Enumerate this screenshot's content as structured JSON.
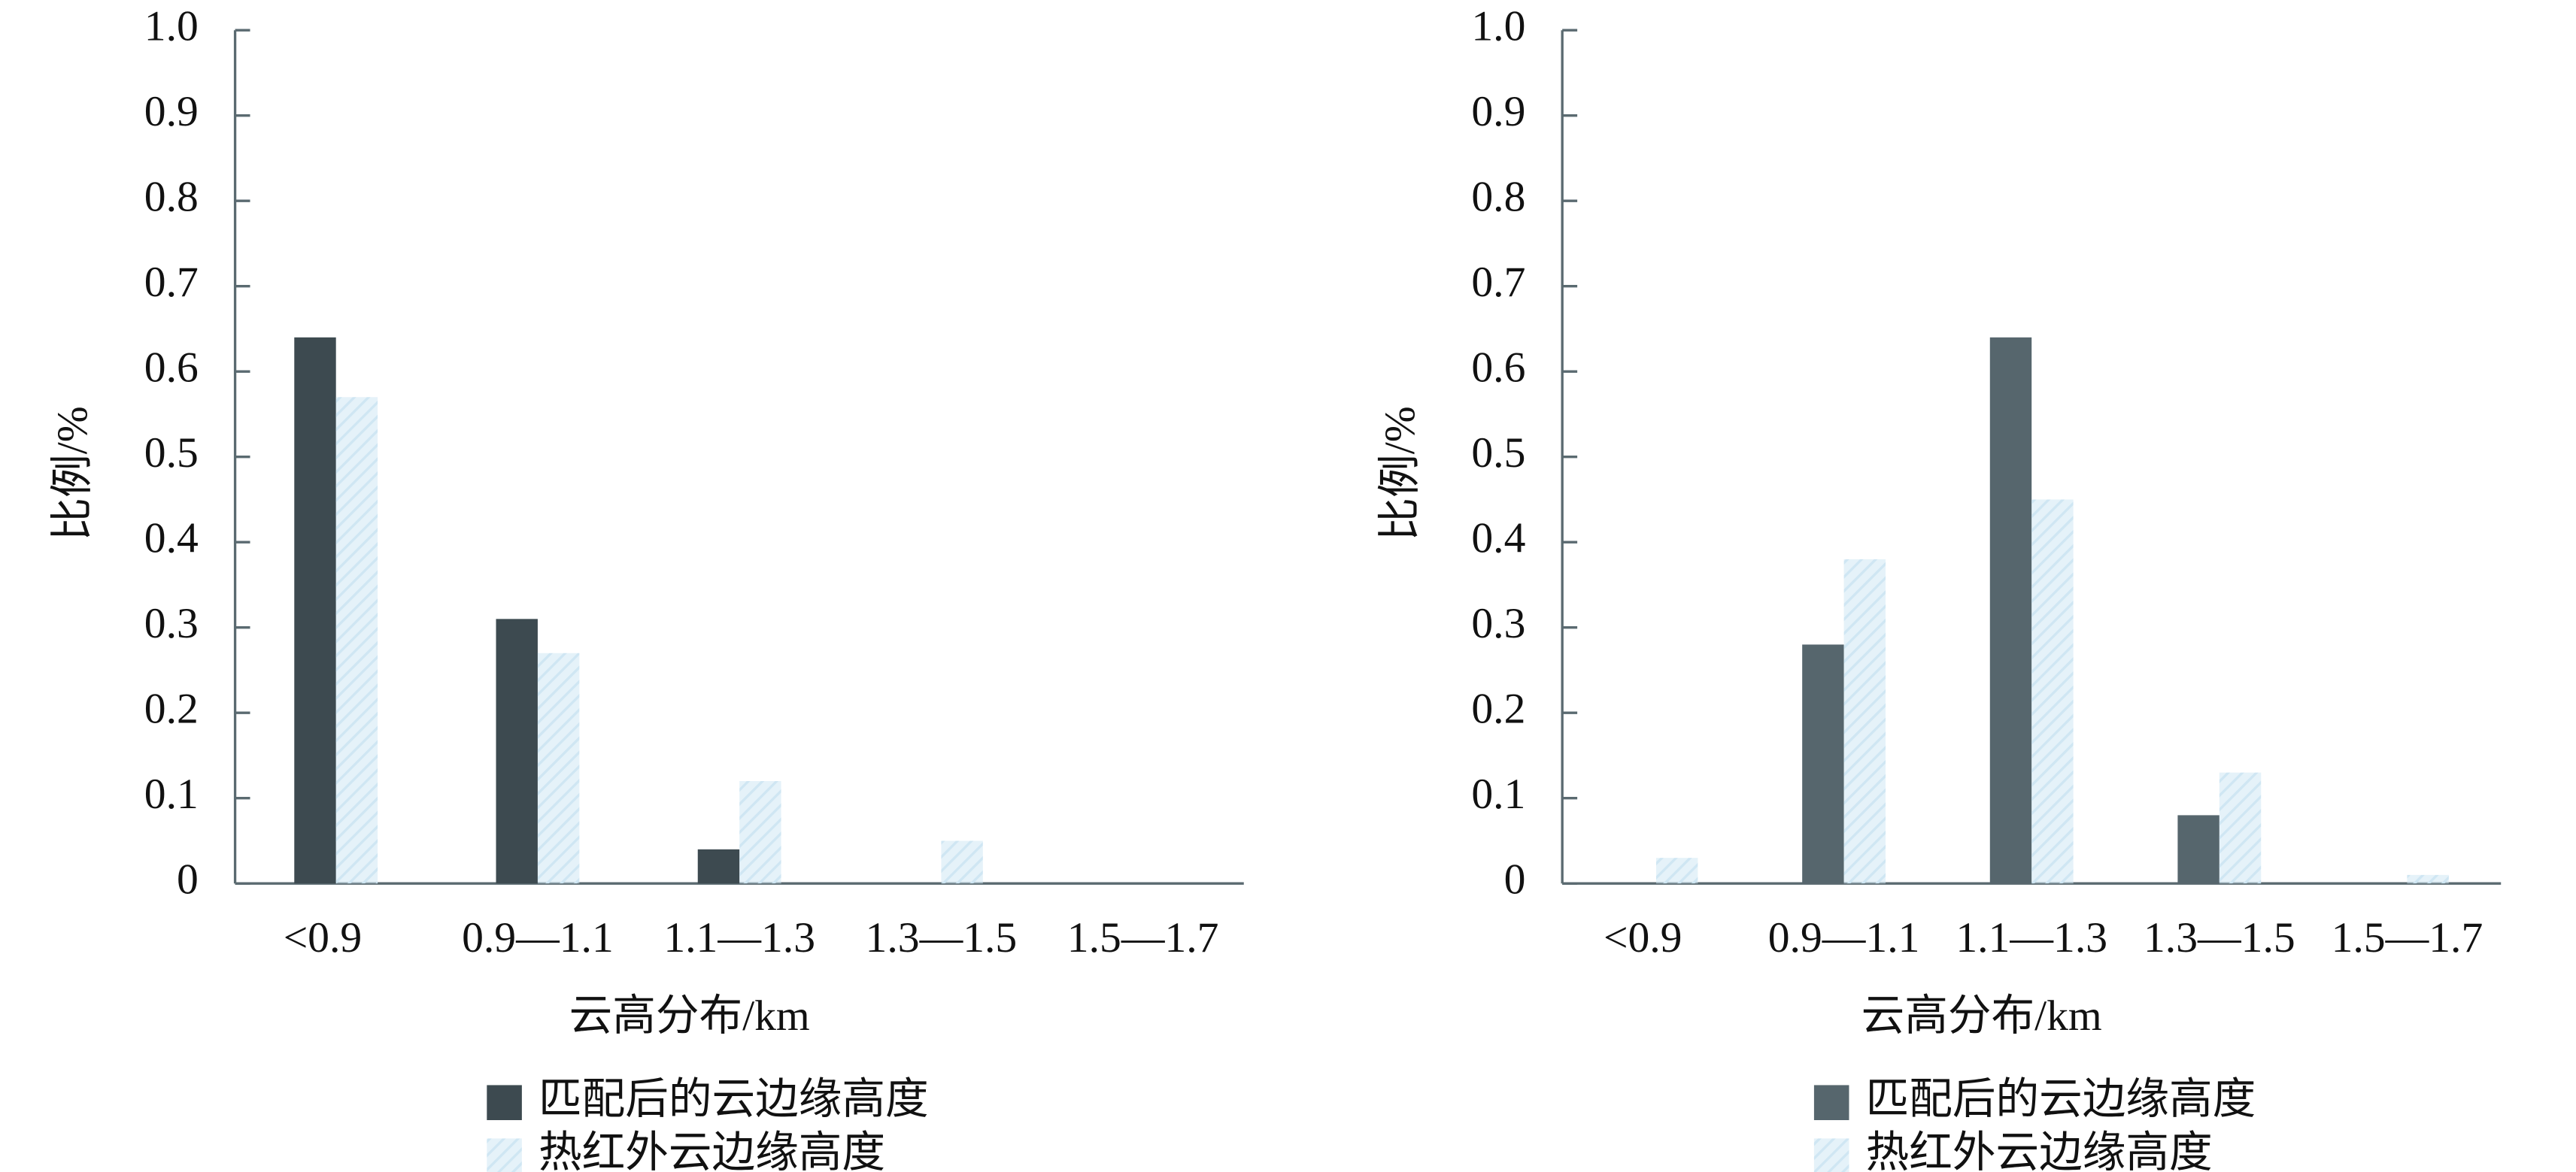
{
  "chart_data": [
    {
      "type": "bar",
      "x_label": "云高分布/km",
      "y_label": "比例/%",
      "categories": [
        "<0.9",
        "0.9—1.1",
        "1.1—1.3",
        "1.3—1.5",
        "1.5—1.7"
      ],
      "series": [
        {
          "name": "匹配后的云边缘高度",
          "color": "#3d4a50",
          "values": [
            0.64,
            0.31,
            0.04,
            0,
            0
          ]
        },
        {
          "name": "热红外云边缘高度",
          "color": "#cfe6f3",
          "values": [
            0.57,
            0.27,
            0.12,
            0.05,
            0
          ]
        }
      ],
      "ylim": [
        0,
        1
      ],
      "yticks": [
        0,
        0.1,
        0.2,
        0.3,
        0.4,
        0.5,
        0.6,
        0.7,
        0.8,
        0.9,
        {
          "value": 1,
          "label": "1.0"
        }
      ]
    },
    {
      "type": "bar",
      "x_label": "云高分布/km",
      "y_label": "比例/%",
      "categories": [
        "<0.9",
        "0.9—1.1",
        "1.1—1.3",
        "1.3—1.5",
        "1.5—1.7"
      ],
      "series": [
        {
          "name": "匹配后的云边缘高度",
          "color": "#56666d",
          "values": [
            0,
            0.28,
            0.64,
            0.08,
            0
          ]
        },
        {
          "name": "热红外云边缘高度",
          "color": "#cfe6f3",
          "values": [
            0.03,
            0.38,
            0.45,
            0.13,
            0.01
          ]
        }
      ],
      "ylim": [
        0,
        1
      ],
      "yticks": [
        0,
        0.1,
        0.2,
        0.3,
        0.4,
        0.5,
        0.6,
        0.7,
        0.8,
        0.9,
        {
          "value": 1,
          "label": "1.0"
        }
      ]
    }
  ]
}
